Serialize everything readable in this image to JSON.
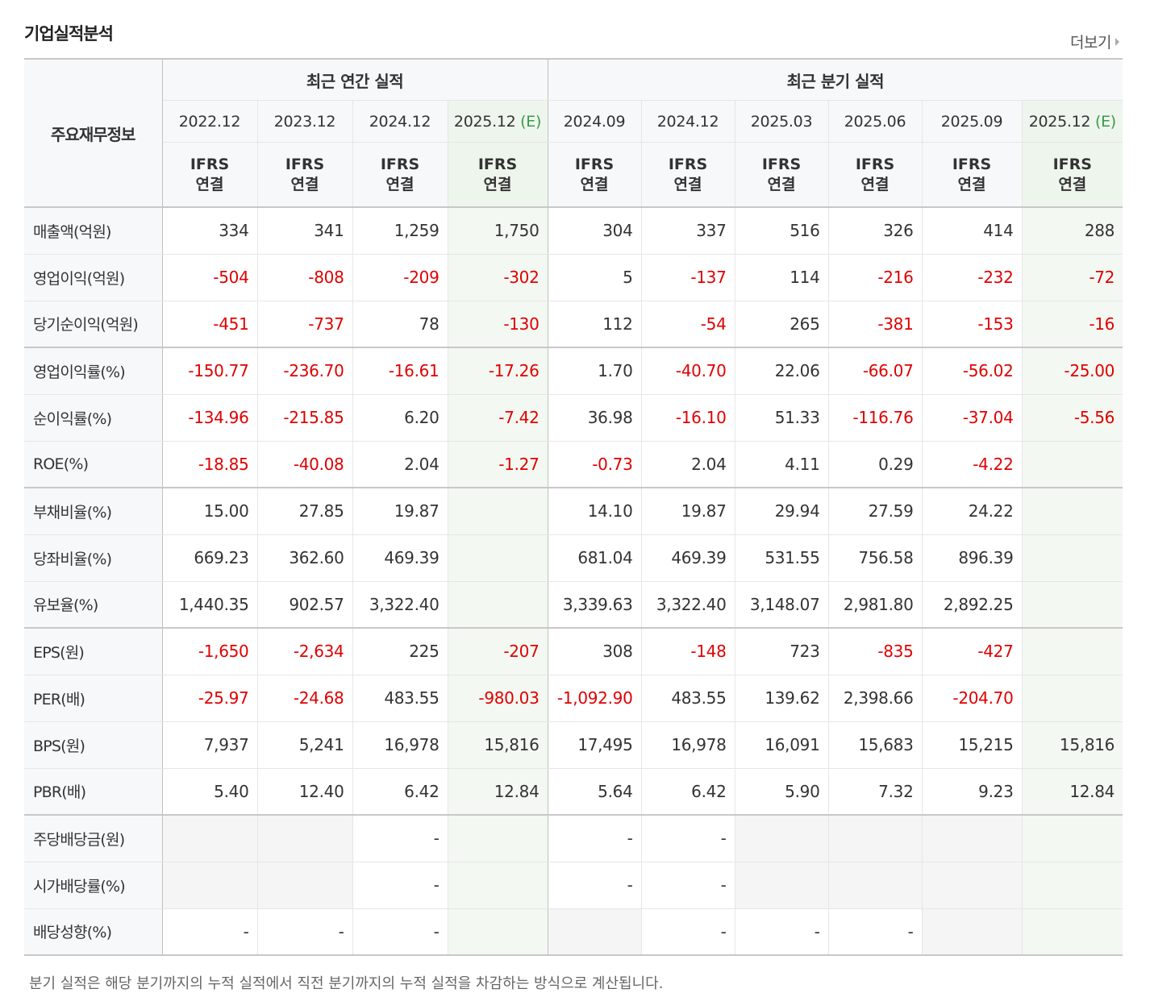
{
  "header": {
    "title": "기업실적분석",
    "more_label": "더보기"
  },
  "table": {
    "corner_label": "주요재무정보",
    "groups": [
      {
        "label": "최근 연간 실적",
        "span": 4
      },
      {
        "label": "최근 분기 실적",
        "span": 6
      }
    ],
    "periods": [
      {
        "label": "2022.12",
        "est": ""
      },
      {
        "label": "2023.12",
        "est": ""
      },
      {
        "label": "2024.12",
        "est": ""
      },
      {
        "label": "2025.12",
        "est": "(E)"
      },
      {
        "label": "2024.09",
        "est": ""
      },
      {
        "label": "2024.12",
        "est": ""
      },
      {
        "label": "2025.03",
        "est": ""
      },
      {
        "label": "2025.06",
        "est": ""
      },
      {
        "label": "2025.09",
        "est": ""
      },
      {
        "label": "2025.12",
        "est": "(E)"
      }
    ],
    "basis": {
      "line1": "IFRS",
      "line2": "연결"
    },
    "rows": [
      {
        "label": "매출액(억원)",
        "values": [
          "334",
          "341",
          "1,259",
          "1,750",
          "304",
          "337",
          "516",
          "326",
          "414",
          "288"
        ]
      },
      {
        "label": "영업이익(억원)",
        "values": [
          "-504",
          "-808",
          "-209",
          "-302",
          "5",
          "-137",
          "114",
          "-216",
          "-232",
          "-72"
        ]
      },
      {
        "label": "당기순이익(억원)",
        "values": [
          "-451",
          "-737",
          "78",
          "-130",
          "112",
          "-54",
          "265",
          "-381",
          "-153",
          "-16"
        ]
      },
      {
        "label": "영업이익률(%)",
        "values": [
          "-150.77",
          "-236.70",
          "-16.61",
          "-17.26",
          "1.70",
          "-40.70",
          "22.06",
          "-66.07",
          "-56.02",
          "-25.00"
        ]
      },
      {
        "label": "순이익률(%)",
        "values": [
          "-134.96",
          "-215.85",
          "6.20",
          "-7.42",
          "36.98",
          "-16.10",
          "51.33",
          "-116.76",
          "-37.04",
          "-5.56"
        ]
      },
      {
        "label": "ROE(%)",
        "values": [
          "-18.85",
          "-40.08",
          "2.04",
          "-1.27",
          "-0.73",
          "2.04",
          "4.11",
          "0.29",
          "-4.22",
          ""
        ]
      },
      {
        "label": "부채비율(%)",
        "values": [
          "15.00",
          "27.85",
          "19.87",
          "",
          "14.10",
          "19.87",
          "29.94",
          "27.59",
          "24.22",
          ""
        ]
      },
      {
        "label": "당좌비율(%)",
        "values": [
          "669.23",
          "362.60",
          "469.39",
          "",
          "681.04",
          "469.39",
          "531.55",
          "756.58",
          "896.39",
          ""
        ]
      },
      {
        "label": "유보율(%)",
        "values": [
          "1,440.35",
          "902.57",
          "3,322.40",
          "",
          "3,339.63",
          "3,322.40",
          "3,148.07",
          "2,981.80",
          "2,892.25",
          ""
        ]
      },
      {
        "label": "EPS(원)",
        "values": [
          "-1,650",
          "-2,634",
          "225",
          "-207",
          "308",
          "-148",
          "723",
          "-835",
          "-427",
          ""
        ]
      },
      {
        "label": "PER(배)",
        "values": [
          "-25.97",
          "-24.68",
          "483.55",
          "-980.03",
          "-1,092.90",
          "483.55",
          "139.62",
          "2,398.66",
          "-204.70",
          ""
        ]
      },
      {
        "label": "BPS(원)",
        "values": [
          "7,937",
          "5,241",
          "16,978",
          "15,816",
          "17,495",
          "16,978",
          "16,091",
          "15,683",
          "15,215",
          "15,816"
        ]
      },
      {
        "label": "PBR(배)",
        "values": [
          "5.40",
          "12.40",
          "6.42",
          "12.84",
          "5.64",
          "6.42",
          "5.90",
          "7.32",
          "9.23",
          "12.84"
        ]
      },
      {
        "label": "주당배당금(원)",
        "values": [
          null,
          null,
          "-",
          "",
          "-",
          "-",
          null,
          null,
          null,
          ""
        ]
      },
      {
        "label": "시가배당률(%)",
        "values": [
          null,
          null,
          "-",
          "",
          "-",
          "-",
          null,
          null,
          null,
          ""
        ]
      },
      {
        "label": "배당성향(%)",
        "values": [
          "-",
          "-",
          "-",
          "",
          null,
          "-",
          "-",
          "-",
          null,
          ""
        ]
      }
    ]
  },
  "footnote": "분기 실적은 해당 분기까지의 누적 실적에서 직전 분기까지의 누적 실적을 차감하는 방식으로 계산됩니다."
}
